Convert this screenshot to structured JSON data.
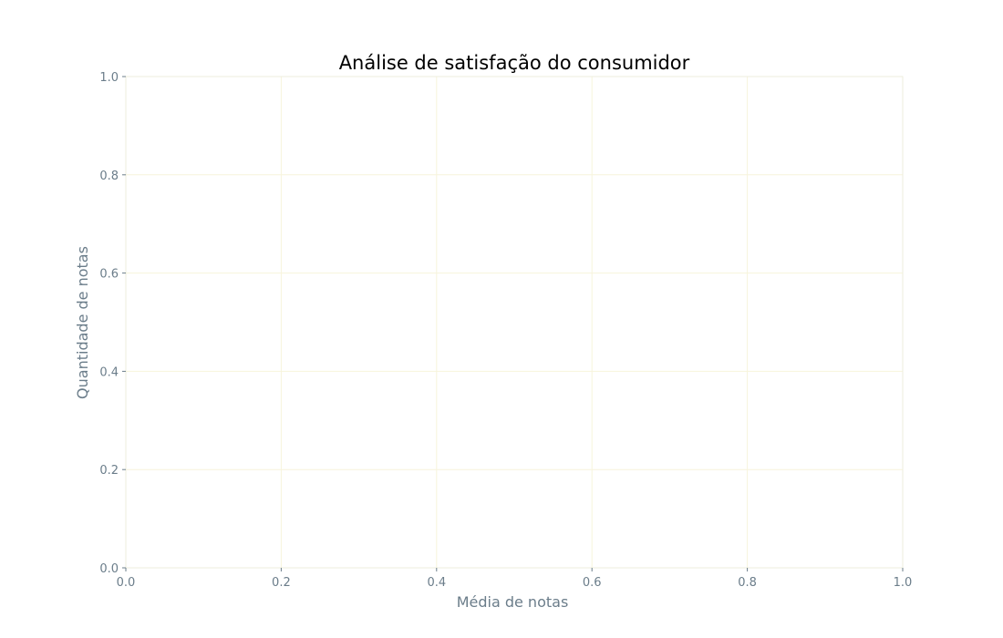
{
  "chart_data": {
    "type": "scatter",
    "title": "Análise de satisfação do consumidor",
    "xlabel": "Média de notas",
    "ylabel": "Quantidade de notas",
    "xlim": [
      0,
      1
    ],
    "ylim": [
      0,
      1
    ],
    "x_ticks": [
      "0.0",
      "0.2",
      "0.4",
      "0.6",
      "0.8",
      "1.0"
    ],
    "y_ticks": [
      "0.0",
      "0.2",
      "0.4",
      "0.6",
      "0.8",
      "1.0"
    ],
    "grid": true,
    "series": [],
    "colors": {
      "grid": "#f7f4dc",
      "text": "#6b7d8a",
      "title": "#000000"
    }
  }
}
